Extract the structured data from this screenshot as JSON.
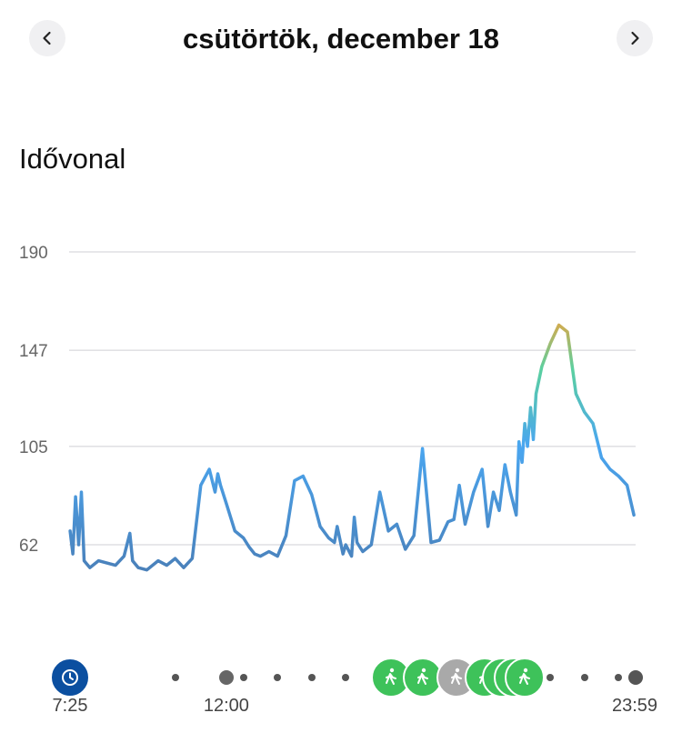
{
  "header": {
    "title": "csütörtök, december 18"
  },
  "section": {
    "title": "Idővonal"
  },
  "colors": {
    "line_low": "#4a7db5",
    "line_mid": "#4aa6f0",
    "line_zone": "#5bd0a0",
    "line_high": "#f7a035",
    "walk": "#3ec25a",
    "inactive": "#a9a9a9",
    "watch": "#0b4fa0"
  },
  "timeline": {
    "start_label": "7:25",
    "mid_label": "12:00",
    "end_label": "23:59",
    "events": [
      {
        "time": "7:25",
        "icon": "watch-icon",
        "type": "device"
      },
      {
        "time": "16:50",
        "icon": "walk-icon",
        "type": "walk"
      },
      {
        "time": "17:45",
        "icon": "walk-icon",
        "type": "walk"
      },
      {
        "time": "18:45",
        "icon": "walk-icon",
        "type": "walk-inactive"
      },
      {
        "time": "19:35",
        "icon": "walk-icon",
        "type": "walk"
      },
      {
        "time": "20:05",
        "icon": "walk-icon",
        "type": "walk"
      },
      {
        "time": "20:25",
        "icon": "walk-icon",
        "type": "walk"
      },
      {
        "time": "20:45",
        "icon": "walk-icon",
        "type": "walk"
      }
    ]
  },
  "chart_data": {
    "type": "line",
    "title": "",
    "xlabel": "",
    "ylabel": "",
    "x_unit": "hour of day",
    "xlim": [
      7.4167,
      24.0
    ],
    "ylim": [
      35,
      190
    ],
    "yticks": [
      62,
      105,
      147,
      190
    ],
    "ytick_labels": [
      "62",
      "105",
      "147",
      "190"
    ],
    "grid": true,
    "series": [
      {
        "x": [
          7.42,
          7.5,
          7.58,
          7.67,
          7.75,
          7.83,
          8.0,
          8.25,
          8.5,
          8.75,
          9.0,
          9.17,
          9.25,
          9.42,
          9.67,
          10.0,
          10.25,
          10.5,
          10.75,
          11.0,
          11.25,
          11.5,
          11.67,
          11.75,
          11.83,
          12.0,
          12.25,
          12.5,
          12.67,
          12.83,
          13.0,
          13.25,
          13.5,
          13.75,
          14.0,
          14.25,
          14.5,
          14.75,
          15.0,
          15.17,
          15.25,
          15.42,
          15.5,
          15.67,
          15.75,
          15.83,
          16.0,
          16.25,
          16.5,
          16.75,
          17.0,
          17.25,
          17.5,
          17.75,
          18.0,
          18.25,
          18.5,
          18.67,
          18.83,
          19.0,
          19.25,
          19.5,
          19.67,
          19.83,
          20.0,
          20.17,
          20.33,
          20.5,
          20.58,
          20.67,
          20.75,
          20.83,
          20.92,
          21.0,
          21.08,
          21.25,
          21.5,
          21.75,
          22.0,
          22.25,
          22.5,
          22.75,
          23.0,
          23.25,
          23.5,
          23.75,
          23.95
        ],
        "y": [
          68,
          58,
          83,
          62,
          85,
          55,
          52,
          55,
          54,
          53,
          57,
          67,
          55,
          52,
          51,
          55,
          53,
          56,
          52,
          56,
          88,
          95,
          85,
          93,
          88,
          80,
          68,
          65,
          61,
          58,
          57,
          59,
          57,
          66,
          90,
          92,
          84,
          70,
          65,
          63,
          70,
          58,
          62,
          57,
          74,
          63,
          59,
          62,
          85,
          68,
          71,
          60,
          66,
          104,
          63,
          64,
          72,
          73,
          88,
          71,
          85,
          95,
          70,
          85,
          77,
          97,
          85,
          75,
          107,
          98,
          115,
          105,
          122,
          108,
          128,
          140,
          150,
          158,
          155,
          128,
          120,
          115,
          100,
          95,
          92,
          88,
          75
        ]
      }
    ]
  }
}
